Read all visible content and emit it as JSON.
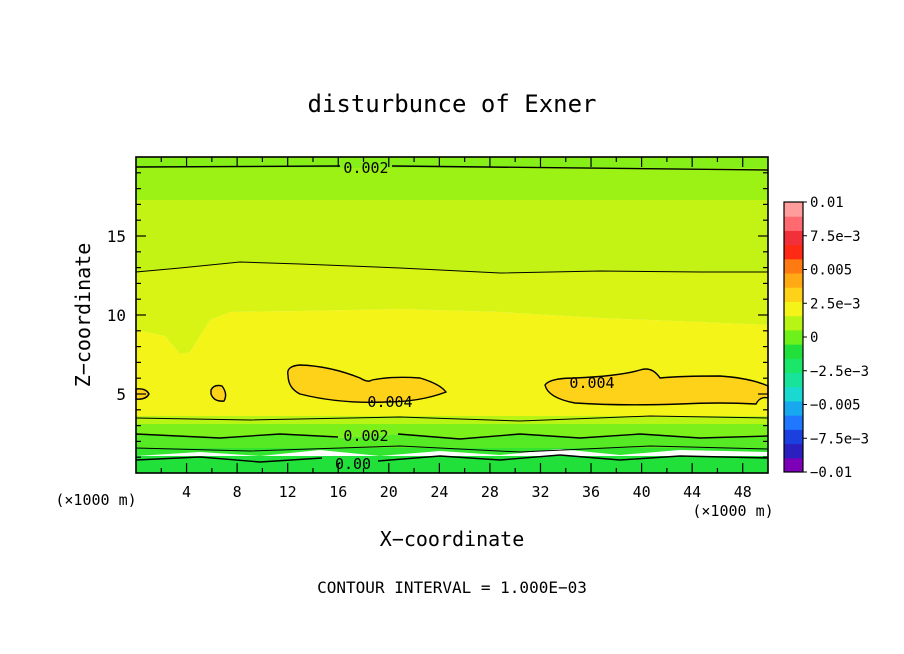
{
  "chart_data": {
    "type": "heatmap",
    "title": "disturbunce of Exner",
    "xlabel": "X−coordinate",
    "ylabel": "Z−coordinate",
    "x_unit": "(×1000 m)",
    "x_unit_right": "(×1000 m)",
    "footer": "CONTOUR INTERVAL = 1.000E−03",
    "xlim": [
      0,
      50
    ],
    "ylim": [
      0,
      20
    ],
    "x_ticks": [
      4,
      8,
      12,
      16,
      20,
      24,
      28,
      32,
      36,
      40,
      44,
      48
    ],
    "y_ticks": [
      5,
      10,
      15
    ],
    "colorbar": {
      "range": [
        -0.01,
        0.01
      ],
      "labels": [
        {
          "value": 0.01,
          "text": "0.01"
        },
        {
          "value": 0.0075,
          "text": "7.5e−3"
        },
        {
          "value": 0.005,
          "text": "0.005"
        },
        {
          "value": 0.0025,
          "text": "2.5e−3"
        },
        {
          "value": 0,
          "text": "0"
        },
        {
          "value": -0.0025,
          "text": "−2.5e−3"
        },
        {
          "value": -0.005,
          "text": "−0.005"
        },
        {
          "value": -0.0075,
          "text": "−7.5e−3"
        },
        {
          "value": -0.01,
          "text": "−0.01"
        }
      ],
      "colors": [
        "#7b00b8",
        "#2b1fbf",
        "#1c3fe0",
        "#1f78ff",
        "#18a8f0",
        "#19d9d0",
        "#17e39a",
        "#1ae66a",
        "#22e03a",
        "#6ef01a",
        "#b8f514",
        "#f4f418",
        "#ffd21a",
        "#ffaa14",
        "#ff7a10",
        "#ff2a14",
        "#f2303a",
        "#ff6a70",
        "#ff9c9c"
      ]
    },
    "contour_lines": [
      {
        "label": "0.002",
        "z_estimate": 19.2
      },
      {
        "label": "0.004",
        "region": "x 12-24, z 4.5-6.5"
      },
      {
        "label": "0.004",
        "region": "x 32-50, z 4.3-6.5"
      },
      {
        "label": "0.002",
        "z_estimate": 2.3
      },
      {
        "label": "0.00",
        "z_estimate": 0.6
      }
    ],
    "band_values": [
      {
        "z_from": 0,
        "z_to": 0.6,
        "value": 0.0006
      },
      {
        "z_from": 0.6,
        "z_to": 1.5,
        "value": 0.001
      },
      {
        "z_from": 1.5,
        "z_to": 2.3,
        "value": 0.0016
      },
      {
        "z_from": 2.3,
        "z_to": 3.0,
        "value": 0.0024
      },
      {
        "z_from": 3.0,
        "z_to": 3.7,
        "value": 0.003
      },
      {
        "z_from": 3.7,
        "z_to": 9.5,
        "value": 0.0036
      },
      {
        "z_from": 9.5,
        "z_to": 12.7,
        "value": 0.0033
      },
      {
        "z_from": 12.7,
        "z_to": 17.5,
        "value": 0.0028
      },
      {
        "z_from": 17.5,
        "z_to": 19.2,
        "value": 0.0022
      },
      {
        "z_from": 19.2,
        "z_to": 20,
        "value": 0.0019
      }
    ]
  }
}
